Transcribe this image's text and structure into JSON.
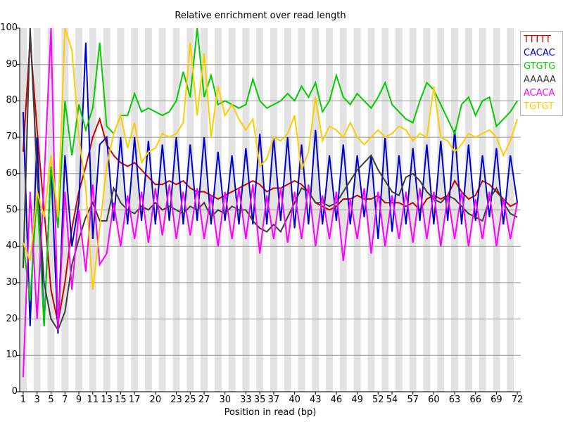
{
  "title": "Relative enrichment over read length",
  "xlabel": "Position in read (bp)",
  "colors": {
    "band": "#e2e2e2",
    "grid": "#969696",
    "axis": "#000000",
    "background": "#ffffff"
  },
  "chart_data": {
    "type": "line",
    "title": "Relative enrichment over read length",
    "xlabel": "Position in read (bp)",
    "ylabel": "",
    "xlim": [
      1,
      72
    ],
    "ylim": [
      0,
      100
    ],
    "grid": "horizontal gray lines every 10 units; alternating light-gray vertical bands per read position",
    "legend_position": "top-right outside plot",
    "yticks": [
      0,
      10,
      20,
      30,
      40,
      50,
      60,
      70,
      80,
      90,
      100
    ],
    "xtick_labels": [
      1,
      3,
      5,
      7,
      9,
      11,
      13,
      15,
      17,
      20,
      23,
      25,
      27,
      30,
      33,
      35,
      37,
      40,
      43,
      46,
      49,
      52,
      54,
      57,
      60,
      63,
      66,
      69,
      72
    ],
    "x": "positions 1..72",
    "series": [
      {
        "name": "TTTTT",
        "color": "#cc0000",
        "values": [
          66,
          97,
          72,
          50,
          28,
          19,
          30,
          45,
          55,
          62,
          70,
          75,
          68,
          65,
          63,
          62,
          63,
          61,
          59,
          57,
          57,
          58,
          57,
          58,
          56,
          55,
          55,
          54,
          53,
          54,
          55,
          56,
          57,
          58,
          57,
          55,
          56,
          56,
          57,
          58,
          57,
          55,
          52,
          51,
          50,
          51,
          53,
          53,
          54,
          53,
          53,
          54,
          52,
          52,
          52,
          51,
          52,
          50,
          53,
          54,
          53,
          54,
          58,
          55,
          53,
          54,
          58,
          57,
          55,
          53,
          51,
          52
        ]
      },
      {
        "name": "CACAC",
        "color": "#0000cc",
        "values": [
          77,
          18,
          70,
          18,
          62,
          16,
          65,
          40,
          52,
          96,
          42,
          68,
          70,
          47,
          70,
          46,
          70,
          47,
          69,
          46,
          68,
          47,
          70,
          46,
          68,
          47,
          70,
          46,
          66,
          47,
          65,
          46,
          67,
          46,
          71,
          46,
          70,
          47,
          70,
          45,
          68,
          46,
          72,
          46,
          65,
          47,
          68,
          46,
          65,
          48,
          65,
          42,
          70,
          44,
          65,
          46,
          67,
          47,
          68,
          46,
          69,
          47,
          72,
          46,
          68,
          47,
          65,
          48,
          67,
          46,
          65,
          52
        ]
      },
      {
        "name": "GTGTG",
        "color": "#00cc00",
        "values": [
          41,
          25,
          55,
          18,
          62,
          45,
          80,
          65,
          79,
          72,
          78,
          96,
          73,
          71,
          76,
          76,
          82,
          77,
          78,
          77,
          76,
          77,
          80,
          88,
          81,
          100,
          81,
          87,
          79,
          80,
          79,
          78,
          79,
          86,
          80,
          78,
          79,
          80,
          82,
          80,
          84,
          81,
          85,
          77,
          80,
          87,
          81,
          79,
          82,
          80,
          78,
          81,
          85,
          79,
          77,
          75,
          74,
          80,
          85,
          83,
          79,
          75,
          71,
          79,
          81,
          76,
          80,
          81,
          73,
          75,
          77,
          80
        ]
      },
      {
        "name": "AAAAA",
        "color": "#3c3c3c",
        "values": [
          34,
          100,
          60,
          30,
          20,
          17,
          22,
          35,
          42,
          48,
          52,
          47,
          47,
          56,
          52,
          50,
          49,
          51,
          50,
          52,
          50,
          51,
          50,
          49,
          51,
          50,
          52,
          48,
          50,
          49,
          51,
          50,
          50,
          47,
          45,
          44,
          46,
          44,
          48,
          52,
          56,
          55,
          52,
          52,
          51,
          52,
          55,
          58,
          61,
          63,
          65,
          61,
          58,
          55,
          54,
          59,
          60,
          58,
          55,
          53,
          52,
          54,
          53,
          51,
          49,
          48,
          47,
          53,
          56,
          52,
          49,
          48
        ]
      },
      {
        "name": "ACACA",
        "color": "#ff00ff",
        "values": [
          4,
          55,
          20,
          58,
          100,
          17,
          55,
          28,
          50,
          33,
          57,
          35,
          38,
          52,
          40,
          54,
          42,
          55,
          41,
          56,
          43,
          57,
          42,
          55,
          43,
          56,
          42,
          54,
          40,
          55,
          42,
          56,
          42,
          57,
          38,
          54,
          42,
          56,
          41,
          55,
          42,
          57,
          40,
          54,
          42,
          55,
          36,
          53,
          42,
          56,
          38,
          55,
          40,
          54,
          42,
          55,
          41,
          56,
          42,
          55,
          40,
          54,
          42,
          55,
          40,
          53,
          42,
          55,
          40,
          53,
          42,
          52
        ]
      },
      {
        "name": "TGTGT",
        "color": "#ffcc00",
        "values": [
          41,
          36,
          55,
          48,
          65,
          48,
          101,
          94,
          70,
          56,
          28,
          45,
          62,
          71,
          76,
          67,
          74,
          63,
          66,
          67,
          71,
          70,
          71,
          74,
          96,
          76,
          93,
          70,
          84,
          76,
          79,
          75,
          72,
          75,
          62,
          64,
          70,
          69,
          71,
          76,
          61,
          66,
          81,
          69,
          73,
          72,
          70,
          74,
          70,
          68,
          70,
          72,
          70,
          71,
          73,
          72,
          69,
          71,
          70,
          84,
          70,
          69,
          66,
          68,
          71,
          70,
          71,
          72,
          70,
          65,
          69,
          75
        ]
      }
    ]
  }
}
